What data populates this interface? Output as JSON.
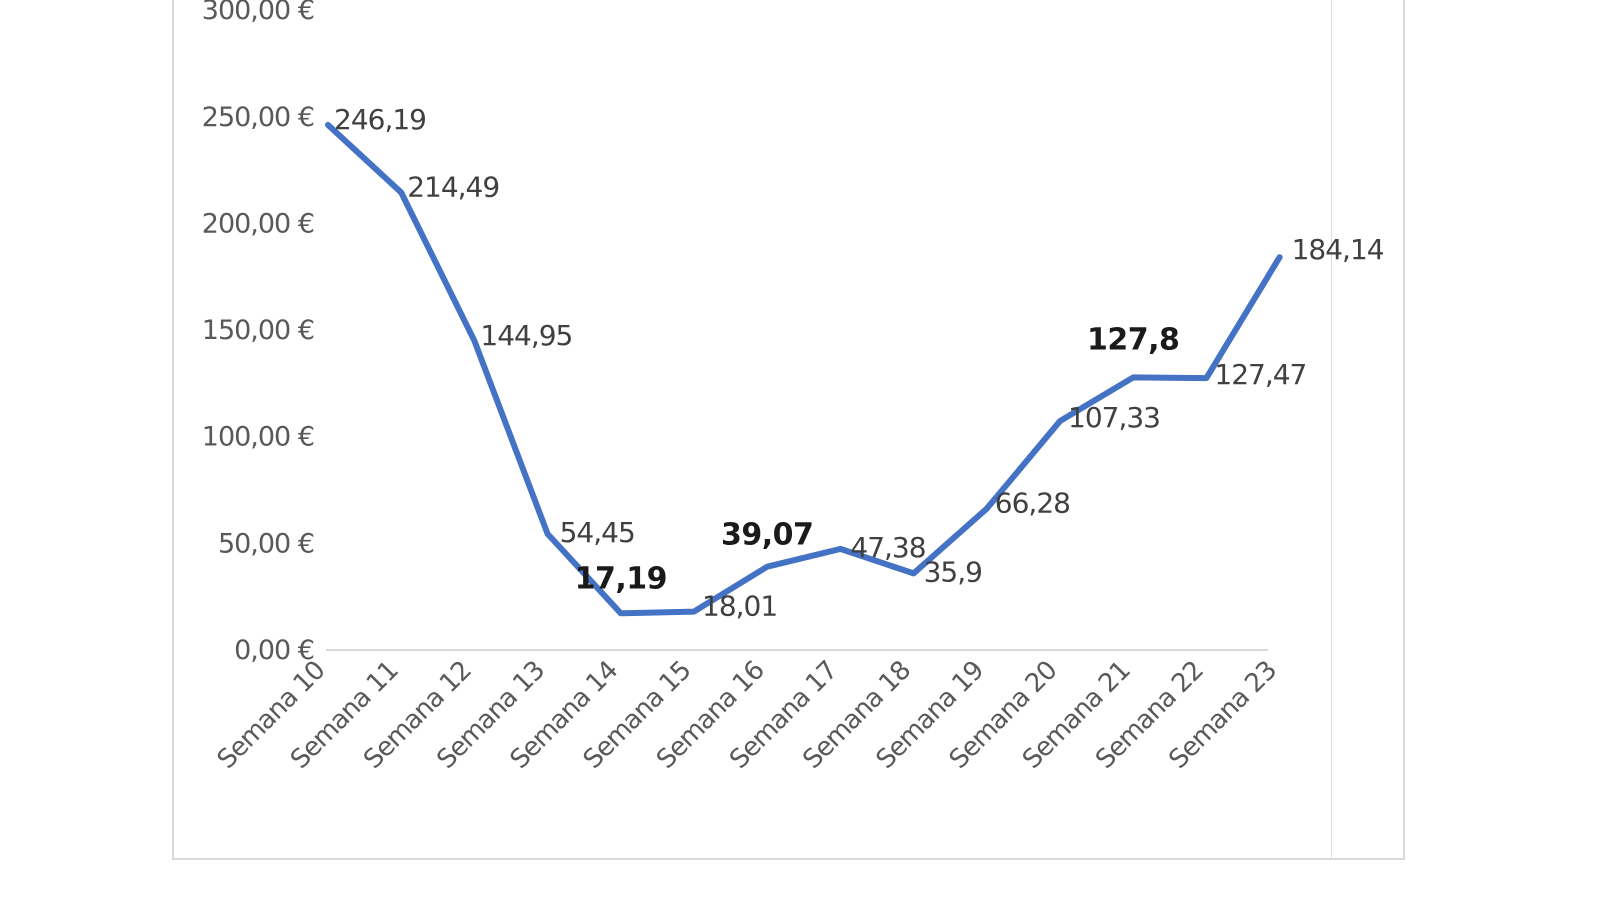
{
  "chart_data": {
    "type": "line",
    "title": "",
    "xlabel": "",
    "ylabel": "",
    "ylim": [
      0,
      300
    ],
    "y_ticks": [
      "0,00 €",
      "50,00 €",
      "100,00 €",
      "150,00 €",
      "200,00 €",
      "250,00 €",
      "300,00 €"
    ],
    "y_tick_values": [
      0,
      50,
      100,
      150,
      200,
      250,
      300
    ],
    "categories": [
      "Semana 10",
      "Semana 11",
      "Semana 12",
      "Semana 13",
      "Semana 14",
      "Semana 15",
      "Semana 16",
      "Semana 17",
      "Semana 18",
      "Semana 19",
      "Semana 20",
      "Semana 21",
      "Semana 22",
      "Semana 23"
    ],
    "grid": false,
    "legend": "none",
    "series": [
      {
        "color": "#4472c4",
        "values": [
          246.19,
          214.49,
          144.95,
          54.45,
          17.19,
          18.01,
          39.07,
          47.38,
          35.9,
          66.28,
          107.33,
          127.8,
          127.47,
          184.14
        ],
        "labels": [
          "246,19",
          "214,49",
          "144,95",
          "54,45",
          "17,19",
          "18,01",
          "39,07",
          "47,38",
          "35,9",
          "66,28",
          "107,33",
          "127,8",
          "127,47",
          "184,14"
        ]
      }
    ]
  }
}
